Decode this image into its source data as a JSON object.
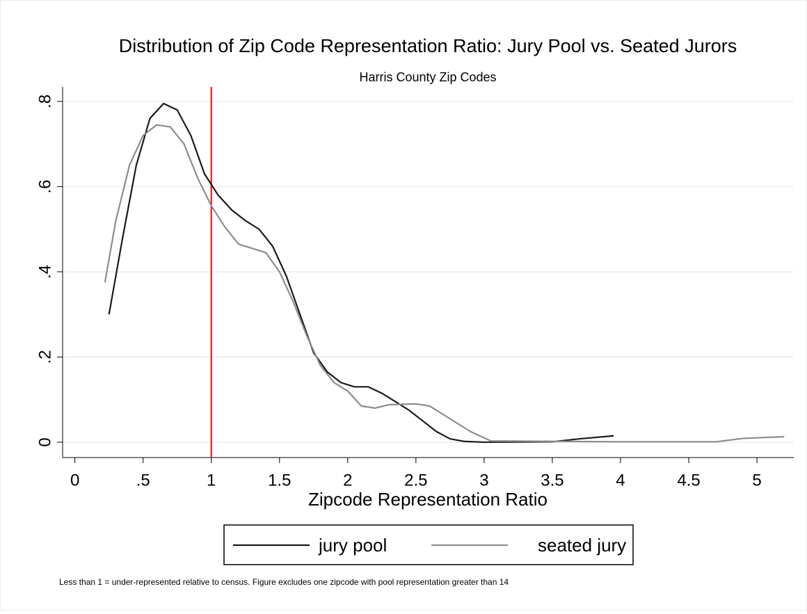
{
  "chart_data": {
    "type": "line",
    "title": "Distribution of Zip Code Representation Ratio: Jury Pool vs. Seated Jurors",
    "subtitle": "Harris County Zip Codes",
    "x_label": "Zipcode Representation Ratio",
    "note": "Less than 1 = under-represented relative to census. Figure excludes one zipcode with pool representation greater than 14",
    "xlim": [
      -0.09,
      5.27
    ],
    "ylim": [
      -0.036,
      0.834
    ],
    "xticks": [
      0,
      {
        "value": 0.5,
        "label": ".5"
      },
      1,
      1.5,
      2,
      2.5,
      3,
      3.5,
      4,
      4.5,
      5
    ],
    "yticks": [
      0,
      {
        "value": 0.2,
        "label": ".2"
      },
      {
        "value": 0.4,
        "label": ".4"
      },
      {
        "value": 0.6,
        "label": ".6"
      },
      {
        "value": 0.8,
        "label": ".8"
      }
    ],
    "grid": true,
    "reference_line": {
      "x": 1,
      "color": "#ff0000"
    },
    "series": [
      {
        "name": "jury pool",
        "color": "#1a1a1a",
        "x": [
          0.25,
          0.35,
          0.45,
          0.55,
          0.65,
          0.75,
          0.85,
          0.95,
          1.05,
          1.15,
          1.25,
          1.35,
          1.45,
          1.55,
          1.65,
          1.75,
          1.85,
          1.95,
          2.05,
          2.15,
          2.25,
          2.35,
          2.45,
          2.55,
          2.65,
          2.75,
          2.85,
          3.0,
          3.5,
          3.7,
          3.95
        ],
        "values": [
          0.3,
          0.48,
          0.65,
          0.76,
          0.795,
          0.78,
          0.72,
          0.63,
          0.58,
          0.545,
          0.52,
          0.5,
          0.46,
          0.39,
          0.3,
          0.21,
          0.165,
          0.14,
          0.13,
          0.13,
          0.115,
          0.095,
          0.075,
          0.05,
          0.025,
          0.008,
          0.002,
          0,
          0.001,
          0.008,
          0.015
        ]
      },
      {
        "name": "seated jury",
        "color": "#8c8c8c",
        "x": [
          0.22,
          0.3,
          0.4,
          0.5,
          0.6,
          0.7,
          0.8,
          0.9,
          1.0,
          1.1,
          1.2,
          1.3,
          1.4,
          1.5,
          1.6,
          1.7,
          1.8,
          1.9,
          2.0,
          2.1,
          2.2,
          2.3,
          2.5,
          2.6,
          2.7,
          2.8,
          2.9,
          3.05,
          3.5,
          4.0,
          4.7,
          4.9,
          5.2
        ],
        "values": [
          0.375,
          0.52,
          0.65,
          0.72,
          0.745,
          0.74,
          0.7,
          0.62,
          0.555,
          0.505,
          0.465,
          0.455,
          0.445,
          0.4,
          0.33,
          0.25,
          0.18,
          0.14,
          0.12,
          0.085,
          0.08,
          0.088,
          0.09,
          0.085,
          0.065,
          0.045,
          0.025,
          0.003,
          0.002,
          0.001,
          0.001,
          0.009,
          0.013
        ]
      }
    ]
  }
}
